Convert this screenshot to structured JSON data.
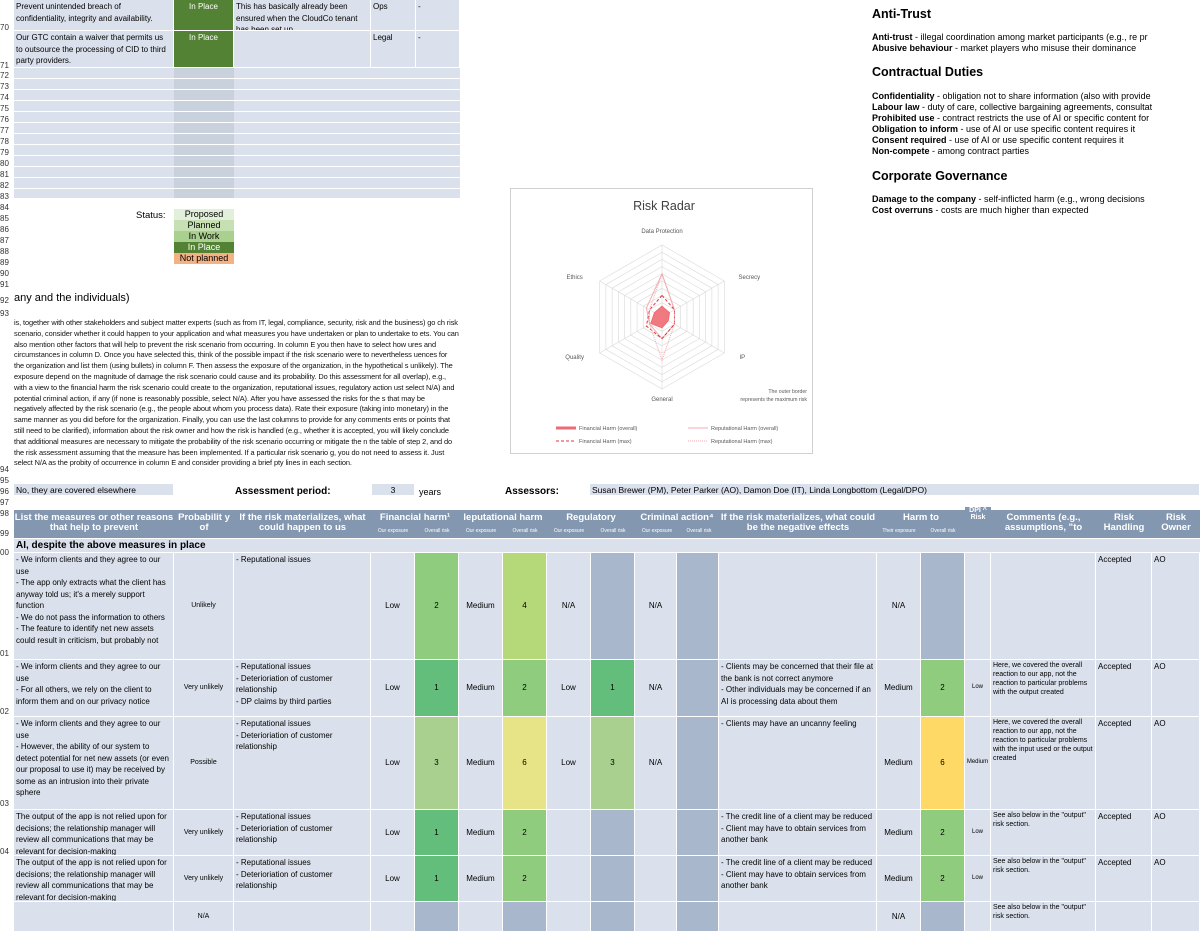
{
  "top_rows": [
    {
      "text": "Prevent unintended breach of confidentiality, integrity and availability.",
      "status": "In Place",
      "comment": "This has basically already been ensured when the CloudCo tenant has been set up.",
      "owner": "Ops",
      "dash": "-"
    },
    {
      "text": "Our GTC contain a waiver that permits us to outsource the processing of CID to third party providers.",
      "status": "In Place",
      "comment": "",
      "owner": "Legal",
      "dash": "-"
    }
  ],
  "row_numbers": [
    "70",
    "71",
    "72",
    "73",
    "74",
    "75",
    "76",
    "77",
    "78",
    "79",
    "80",
    "81",
    "82",
    "83",
    "84",
    "85",
    "86",
    "87",
    "88",
    "89",
    "90",
    "91",
    "92",
    "93",
    "94",
    "95",
    "96",
    "97",
    "98",
    "99",
    "00",
    "01",
    "02",
    "03",
    "04"
  ],
  "status_legend": {
    "label": "Status:",
    "items": [
      "Proposed",
      "Planned",
      "In Work",
      "In Place",
      "Not planned"
    ]
  },
  "section_heading": "any and the individuals)",
  "instructions": "is, together with other stakeholders and subject matter experts (such as from IT, legal, compliance, security, risk and the business) go ch risk scenario, consider whether it could happen to your application and what measures you have undertaken or plan to undertake to ets. You can also mention other factors that will help to prevent the risk scenario from occurring. In column E you then have to select how ures and circumstances in column D. Once you have selected this, think of the possible impact if the risk scenario were to nevertheless uences for the organization and list them (using bullets) in column F. Then assess the exposure of the organization, in the hypothetical s unlikely). The exposure depend on the magnitude of damage the risk scenario could cause and its probability. Do this assessment for all overlap), e.g., with a view to the financial harm the risk scenario could create to the organization, reputational issues, regulatory action ust select N/A) and potential criminal action, if any (if none is reasonably possible, select N/A). After you have assessed the risks for the s that may be negatively affected by the risk scenario (e.g., the people about whom you process data). Rate their exposure (taking into monetary) in the same manner as you did before for the organization. Finally, you can use the last columns to provide for any comments ents or points that still need to be clarified), information about the risk owner and how the risk is handled (e.g., whether it is accepted, you will likely conclude that additional measures are necessary to mitigate the probability of the risk scenario occurring or mitigate the n the table of step 2, and do the risk assessment assuming that the measure has been implemented. If a particular risk scenario g, you do not need to assess it. Just select N/A as the probity of occurrence in column E and consider providing a brief pty lines in each section.",
  "covered_cell": "No, they are covered elsewhere",
  "assessment": {
    "period_label": "Assessment period:",
    "period_value": "3",
    "period_unit": "years",
    "assessors_label": "Assessors:",
    "assessors": "Susan Brewer (PM), Peter Parker (AO), Damon Doe (IT), Linda Longbottom (Legal/DPO)"
  },
  "headers": {
    "measures": "List the measures or other reasons that help to prevent",
    "probability": "Probabilit y of",
    "materialize": "If the risk materializes, what could happen to us",
    "financial": "Financial harm¹",
    "reputational": "leputational harm",
    "regulatory": "Regulatory",
    "criminal": "Criminal action⁴",
    "negative": "If the risk materializes, what could be the negative effects",
    "harm_to": "Harm to",
    "dpi": "DPI ^ Risk",
    "comments": "Comments (e.g., assumptions, \"to",
    "handling": "Risk Handling",
    "owner": "Risk Owner",
    "sub_exposure": "Our exposure",
    "sub_overall": "Overall risk",
    "sub_their": "Their exposure"
  },
  "group_title": "AI, despite the above measures in place",
  "rows": [
    {
      "measures": "- We inform clients and they agree to our use\n- The app only extracts what the client has anyway told us; it's a merely support function\n- We do not pass the information to others\n- The feature to identify net new assets could result in criticism, but probably not",
      "prob": "Unlikely",
      "what": "- Reputational issues",
      "fin_exp": "Low",
      "fin_risk": "2",
      "rep_exp": "Medium",
      "rep_risk": "4",
      "reg_exp": "N/A",
      "reg_risk": "",
      "crim": "N/A",
      "crim_risk": "",
      "neg": "",
      "their_exp": "N/A",
      "their_risk": "",
      "dpi": "",
      "comment": "",
      "handling": "Accepted",
      "owner": "AO"
    },
    {
      "measures": "- We inform clients and they agree to our use\n- For all others, we rely on the client to inform them and on our privacy notice",
      "prob": "Very unlikely",
      "what": "- Reputational issues\n- Deterioriation of customer relationship\n- DP claims by third parties",
      "fin_exp": "Low",
      "fin_risk": "1",
      "rep_exp": "Medium",
      "rep_risk": "2",
      "reg_exp": "Low",
      "reg_risk": "1",
      "crim": "N/A",
      "crim_risk": "",
      "neg": "- Clients may be concerned that their file at the bank is not correct anymore\n- Other individuals may be concerned if an AI is processing data about them",
      "their_exp": "Medium",
      "their_risk": "2",
      "dpi": "Low",
      "comment": "Here, we covered the overall reaction to our app, not the reaction to particular problems with the output created",
      "handling": "Accepted",
      "owner": "AO"
    },
    {
      "measures": "- We inform clients and they agree to our use\n- However, the ability of our system to detect potential for net new assets (or even our proposal to use it) may be received by some as an intrusion into their private sphere",
      "prob": "Possible",
      "what": "- Reputational issues\n- Deterioriation of customer relationship",
      "fin_exp": "Low",
      "fin_risk": "3",
      "rep_exp": "Medium",
      "rep_risk": "6",
      "reg_exp": "Low",
      "reg_risk": "3",
      "crim": "N/A",
      "crim_risk": "",
      "neg": "- Clients may have an uncanny feeling",
      "their_exp": "Medium",
      "their_risk": "6",
      "dpi": "Medium",
      "comment": "Here, we covered the overall reaction to our app, not the reaction to particular problems with the input used or the output created",
      "handling": "Accepted",
      "owner": "AO"
    },
    {
      "measures": "The output of the app is not relied upon for decisions; the relationship manager will review all communications that may be relevant for decision-making",
      "prob": "Very unlikely",
      "what": "- Reputational issues\n- Deterioriation of customer relationship",
      "fin_exp": "Low",
      "fin_risk": "1",
      "rep_exp": "Medium",
      "rep_risk": "2",
      "reg_exp": "",
      "reg_risk": "",
      "crim": "",
      "crim_risk": "",
      "neg": "- The credit line of a client may be reduced\n- Client may have to obtain services from another bank",
      "their_exp": "Medium",
      "their_risk": "2",
      "dpi": "Low",
      "comment": "See also below in the \"output\" risk section.",
      "handling": "Accepted",
      "owner": "AO"
    },
    {
      "measures": "The output of the app is not relied upon for decisions; the relationship manager will review all communications that may be relevant for decision-making",
      "prob": "Very unlikely",
      "what": "- Reputational issues\n- Deterioriation of customer relationship",
      "fin_exp": "Low",
      "fin_risk": "1",
      "rep_exp": "Medium",
      "rep_risk": "2",
      "reg_exp": "",
      "reg_risk": "",
      "crim": "",
      "crim_risk": "",
      "neg": "- The credit line of a client may be reduced\n- Client may have to obtain services from another bank",
      "their_exp": "Medium",
      "their_risk": "2",
      "dpi": "Low",
      "comment": "See also below in the \"output\" risk section.",
      "handling": "Accepted",
      "owner": "AO"
    },
    {
      "measures": "",
      "prob": "N/A",
      "what": "",
      "fin_exp": "",
      "fin_risk": "",
      "rep_exp": "",
      "rep_risk": "",
      "reg_exp": "",
      "reg_risk": "",
      "crim": "",
      "crim_risk": "",
      "neg": "",
      "their_exp": "N/A",
      "their_risk": "",
      "dpi": "",
      "comment": "See also below in the \"output\" risk section.",
      "handling": "",
      "owner": ""
    }
  ],
  "right_panel": {
    "anti_trust": {
      "title": "Anti-Trust",
      "items": [
        {
          "term": "Anti-trust",
          "desc": " - illegal coordination among market participants (e.g., re pr"
        },
        {
          "term": "Abusive behaviour",
          "desc": " - market players who misuse their dominance"
        }
      ]
    },
    "contractual": {
      "title": "Contractual Duties",
      "items": [
        {
          "term": "Confidentiality",
          "desc": " - obligation not to share information (also with provide"
        },
        {
          "term": "Labour law",
          "desc": " - duty of care, collective bargaining agreements, consultat"
        },
        {
          "term": "Prohibited use",
          "desc": " - contract restricts the use of AI or specific content for"
        },
        {
          "term": "Obligation to inform",
          "desc": " - use of AI or use specific content requires it"
        },
        {
          "term": "Consent required",
          "desc": " - use of AI or use specific content requires it"
        },
        {
          "term": "Non-compete",
          "desc": " - among contract parties"
        }
      ]
    },
    "governance": {
      "title": "Corporate Governance",
      "items": [
        {
          "term": "Damage to the company",
          "desc": " -  self-inflicted harm (e.g., wrong decisions"
        },
        {
          "term": "Cost overruns",
          "desc": " - costs are much higher than expected"
        }
      ]
    }
  },
  "chart_data": {
    "type": "radar",
    "title": "Risk Radar",
    "axes": [
      "Data Protection",
      "Secrecy",
      "IP",
      "General",
      "Quality",
      "Ethics"
    ],
    "note": "The outer border represents the maximum risk",
    "legend_position": "bottom",
    "series": [
      {
        "name": "Financial Harm (overall)",
        "values": [
          1.5,
          1.2,
          1.0,
          1.5,
          1.8,
          1.2
        ],
        "style": "filled"
      },
      {
        "name": "Reputational Harm (overall)",
        "values": [
          6.0,
          2.0,
          2.0,
          3.0,
          2.0,
          2.5
        ],
        "style": "line"
      },
      {
        "name": "Financial Harm (max)",
        "values": [
          3.0,
          2.0,
          2.0,
          3.0,
          2.5,
          2.0
        ],
        "style": "dashed"
      },
      {
        "name": "Reputational Harm (max)",
        "values": [
          6.0,
          2.0,
          2.0,
          6.0,
          2.0,
          2.0
        ],
        "style": "dotted"
      }
    ],
    "rmax": 10
  },
  "colors": {
    "header": "#8497b0",
    "light": "#dbe1ec",
    "dark": "#a9b7cc",
    "inplace": "#548235",
    "notplanned": "#f4b183"
  }
}
